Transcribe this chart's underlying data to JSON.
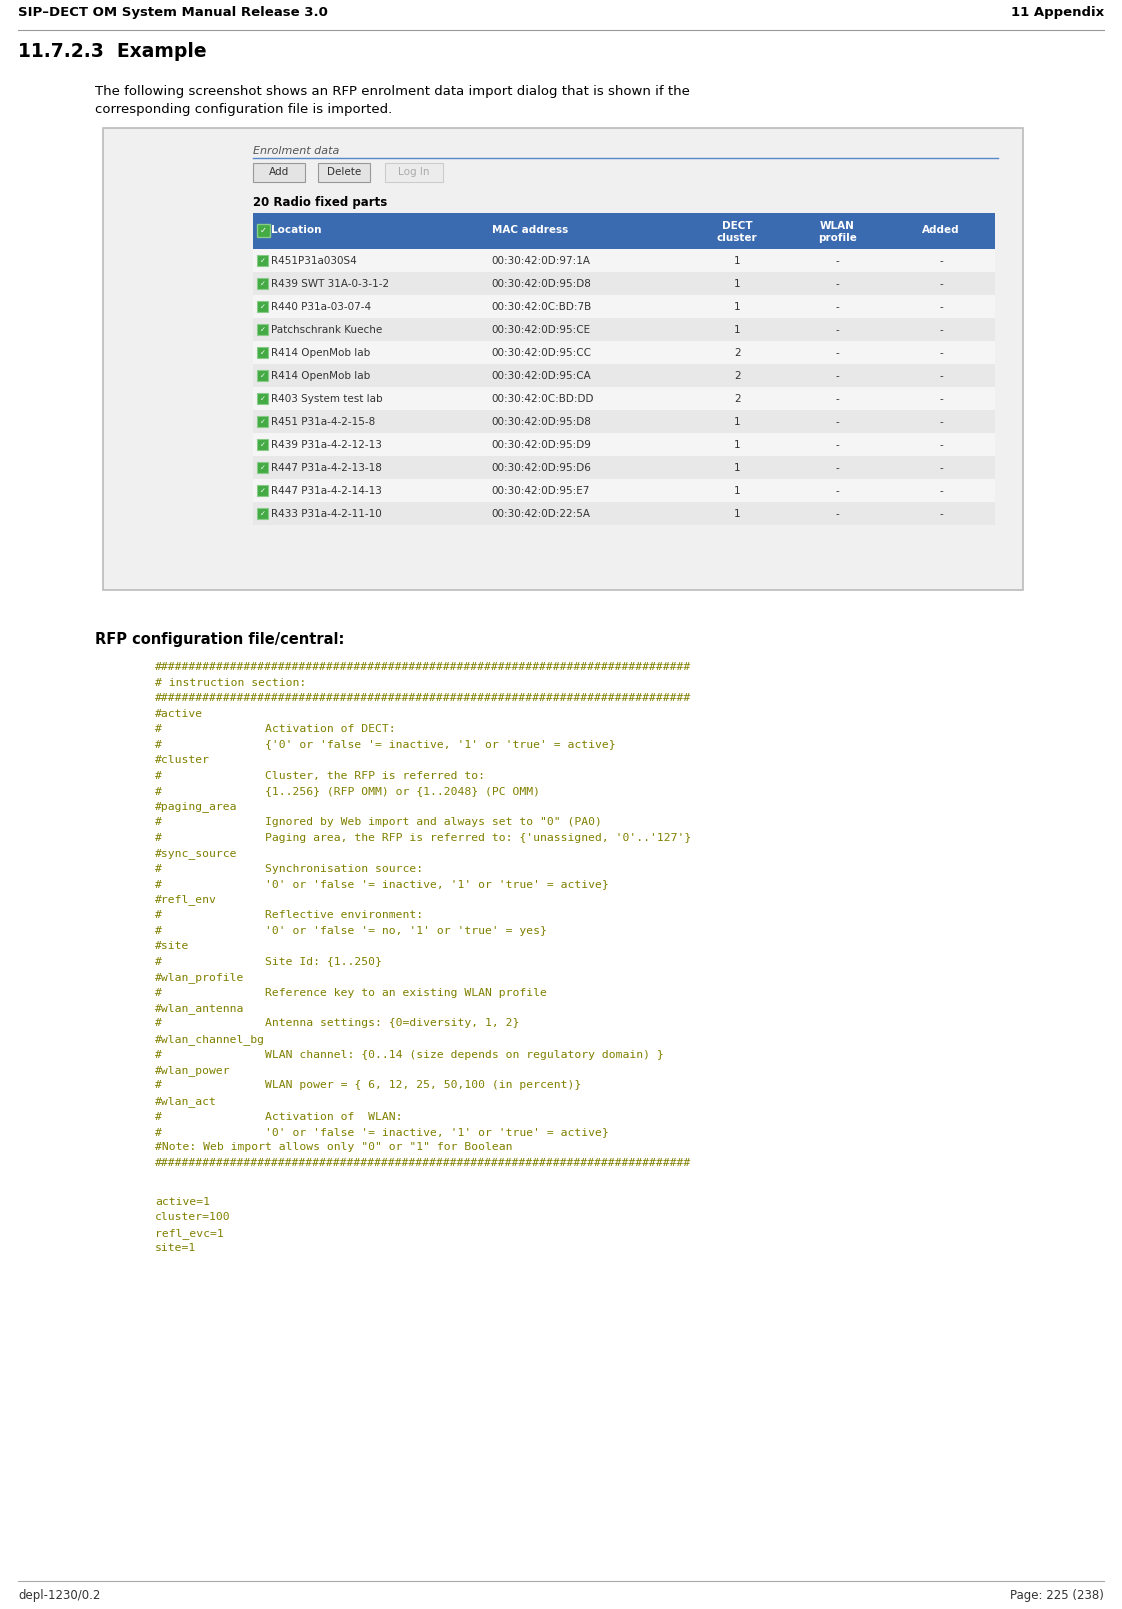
{
  "page_title_left": "SIP–DECT OM System Manual Release 3.0",
  "page_title_right": "11 Appendix",
  "section_title": "11.7.2.3  Example",
  "intro_line1": "The following screenshot shows an RFP enrolment data import dialog that is shown if the",
  "intro_line2": "corresponding configuration file is imported.",
  "dialog_title": "Enrolment data",
  "buttons": [
    "Add",
    "Delete",
    "Log In"
  ],
  "table_header_label": "20 Radio fixed parts",
  "table_columns": [
    "Location",
    "MAC address",
    "DECT\ncluster",
    "WLAN\nprofile",
    "Added"
  ],
  "table_rows": [
    [
      "R451P31a030S4",
      "00:30:42:0D:97:1A",
      "1",
      "-",
      "-"
    ],
    [
      "R439 SWT 31A-0-3-1-2",
      "00:30:42:0D:95:D8",
      "1",
      "-",
      "-"
    ],
    [
      "R440 P31a-03-07-4",
      "00:30:42:0C:BD:7B",
      "1",
      "-",
      "-"
    ],
    [
      "Patchschrank Kueche",
      "00:30:42:0D:95:CE",
      "1",
      "-",
      "-"
    ],
    [
      "R414 OpenMob lab",
      "00:30:42:0D:95:CC",
      "2",
      "-",
      "-"
    ],
    [
      "R414 OpenMob lab",
      "00:30:42:0D:95:CA",
      "2",
      "-",
      "-"
    ],
    [
      "R403 System test lab",
      "00:30:42:0C:BD:DD",
      "2",
      "-",
      "-"
    ],
    [
      "R451 P31a-4-2-15-8",
      "00:30:42:0D:95:D8",
      "1",
      "-",
      "-"
    ],
    [
      "R439 P31a-4-2-12-13",
      "00:30:42:0D:95:D9",
      "1",
      "-",
      "-"
    ],
    [
      "R447 P31a-4-2-13-18",
      "00:30:42:0D:95:D6",
      "1",
      "-",
      "-"
    ],
    [
      "R447 P31a-4-2-14-13",
      "00:30:42:0D:95:E7",
      "1",
      "-",
      "-"
    ],
    [
      "R433 P31a-4-2-11-10",
      "00:30:42:0D:22:5A",
      "1",
      "-",
      "-"
    ]
  ],
  "rfp_label": "RFP configuration file/central:",
  "code_lines": [
    "##############################################################################",
    "# instruction section:                                                        ",
    "##############################################################################",
    "#active",
    "#               Activation of DECT:",
    "#               {'0' or 'false '= inactive, '1' or 'true' = active}",
    "#cluster",
    "#               Cluster, the RFP is referred to:",
    "#               {1..256} (RFP OMM) or {1..2048} (PC OMM)",
    "#paging_area",
    "#               Ignored by Web import and always set to \"0\" (PA0)",
    "#               Paging area, the RFP is referred to: {'unassigned, '0'..'127'}",
    "#sync_source",
    "#               Synchronisation source: ",
    "#               '0' or 'false '= inactive, '1' or 'true' = active}",
    "#refl_env",
    "#               Reflective environment: ",
    "#               '0' or 'false '= no, '1' or 'true' = yes}",
    "#site",
    "#               Site Id: {1..250}",
    "#wlan_profile",
    "#               Reference key to an existing WLAN profile",
    "#wlan_antenna",
    "#               Antenna settings: {0=diversity, 1, 2}",
    "#wlan_channel_bg",
    "#               WLAN channel: {0..14 (size depends on regulatory domain) }",
    "#wlan_power",
    "#               WLAN power = { 6, 12, 25, 50,100 (in percent)}",
    "#wlan_act",
    "#               Activation of  WLAN: ",
    "#               '0' or 'false '= inactive, '1' or 'true' = active}",
    "#Note: Web import allows only \"0\" or \"1\" for Boolean",
    "##############################################################################"
  ],
  "config_values": [
    "active=1",
    "cluster=100",
    "refl_evc=1",
    "site=1"
  ],
  "footer_left": "depl-1230/0.2",
  "footer_right": "Page: 225 (238)",
  "header_color": "#3a6ab0",
  "code_color": "#808000",
  "config_color": "#808000",
  "checkbox_color": "#3c9e3c"
}
